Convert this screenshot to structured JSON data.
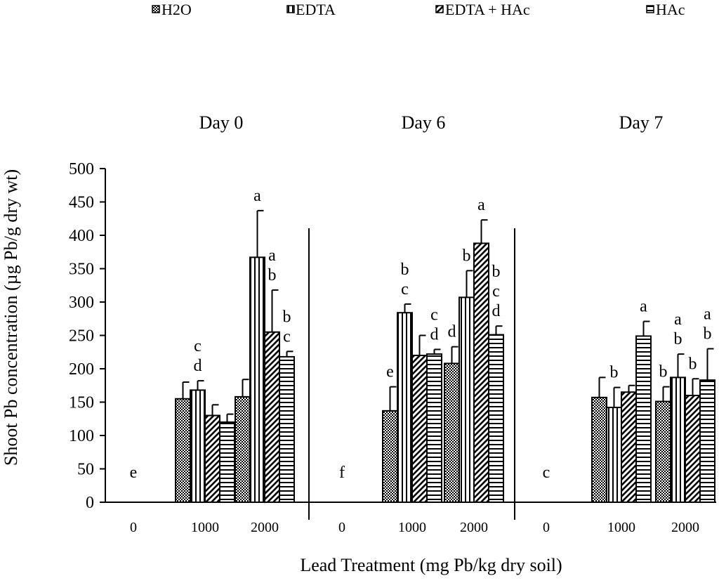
{
  "chart_data": {
    "type": "bar",
    "ylabel": "Shoot Pb concentration (µg Pb/g dry wt)",
    "xlabel": "Lead Treatment (mg Pb/kg dry soil)",
    "ylim": [
      0,
      500
    ],
    "yticks": [
      "0",
      "50",
      "100",
      "150",
      "200",
      "250",
      "300",
      "350",
      "400",
      "450",
      "500"
    ],
    "legend": {
      "position": "top",
      "items": [
        {
          "name": "H2O",
          "pattern": "checker"
        },
        {
          "name": "EDTA",
          "pattern": "vertical"
        },
        {
          "name": "EDTA + HAc",
          "pattern": "diagonal"
        },
        {
          "name": "HAc",
          "pattern": "horizontal"
        }
      ]
    },
    "panels": [
      {
        "title": "Day 0",
        "groups": [
          {
            "label": "0",
            "bars": [],
            "zero_letter": "e"
          },
          {
            "label": "1000",
            "bars": [
              {
                "series": "H2O",
                "value": 155,
                "error": 25,
                "letters": []
              },
              {
                "series": "EDTA",
                "value": 168,
                "error": 14,
                "letters": [
                  "c",
                  "d"
                ]
              },
              {
                "series": "EDTA + HAc",
                "value": 130,
                "error": 16,
                "letters": []
              },
              {
                "series": "HAc",
                "value": 120,
                "error": 12,
                "letters": []
              }
            ]
          },
          {
            "label": "2000",
            "bars": [
              {
                "series": "H2O",
                "value": 158,
                "error": 26,
                "letters": []
              },
              {
                "series": "EDTA",
                "value": 367,
                "error": 70,
                "letters": [
                  "a"
                ]
              },
              {
                "series": "EDTA + HAc",
                "value": 255,
                "error": 63,
                "letters": [
                  "a",
                  "b"
                ]
              },
              {
                "series": "HAc",
                "value": 218,
                "error": 8,
                "letters": [
                  "b",
                  "c"
                ]
              }
            ]
          }
        ]
      },
      {
        "title": "Day 6",
        "groups": [
          {
            "label": "0",
            "bars": [],
            "zero_letter": "f"
          },
          {
            "label": "1000",
            "bars": [
              {
                "series": "H2O",
                "value": 137,
                "error": 36,
                "letters": [
                  "e"
                ]
              },
              {
                "series": "EDTA",
                "value": 284,
                "error": 13,
                "letters": [
                  "b",
                  "c"
                ]
              },
              {
                "series": "EDTA + HAc",
                "value": 220,
                "error": 30,
                "letters": []
              },
              {
                "series": "HAc",
                "value": 222,
                "error": 7,
                "letters": [
                  "c",
                  "d"
                ]
              }
            ]
          },
          {
            "label": "2000",
            "bars": [
              {
                "series": "H2O",
                "value": 208,
                "error": 25,
                "letters": [
                  "d"
                ]
              },
              {
                "series": "EDTA",
                "value": 307,
                "error": 40,
                "letters": [
                  "b"
                ]
              },
              {
                "series": "EDTA + HAc",
                "value": 388,
                "error": 35,
                "letters": [
                  "a"
                ]
              },
              {
                "series": "HAc",
                "value": 251,
                "error": 13,
                "letters": [
                  "b",
                  "c",
                  "d"
                ]
              }
            ]
          }
        ]
      },
      {
        "title": "Day 7",
        "groups": [
          {
            "label": "0",
            "bars": [],
            "zero_letter": "c"
          },
          {
            "label": "1000",
            "bars": [
              {
                "series": "H2O",
                "value": 157,
                "error": 30,
                "letters": []
              },
              {
                "series": "EDTA",
                "value": 142,
                "error": 30,
                "letters": [
                  "b"
                ]
              },
              {
                "series": "EDTA + HAc",
                "value": 165,
                "error": 10,
                "letters": []
              },
              {
                "series": "HAc",
                "value": 249,
                "error": 22,
                "letters": [
                  "a"
                ]
              }
            ]
          },
          {
            "label": "2000",
            "bars": [
              {
                "series": "H2O",
                "value": 151,
                "error": 22,
                "letters": [
                  "b"
                ]
              },
              {
                "series": "EDTA",
                "value": 187,
                "error": 35,
                "letters": [
                  "a",
                  "b"
                ]
              },
              {
                "series": "EDTA + HAc",
                "value": 160,
                "error": 25,
                "letters": [
                  "b"
                ]
              },
              {
                "series": "HAc",
                "value": 183,
                "error": 47,
                "letters": [
                  "a",
                  "b"
                ]
              }
            ]
          }
        ]
      }
    ]
  }
}
